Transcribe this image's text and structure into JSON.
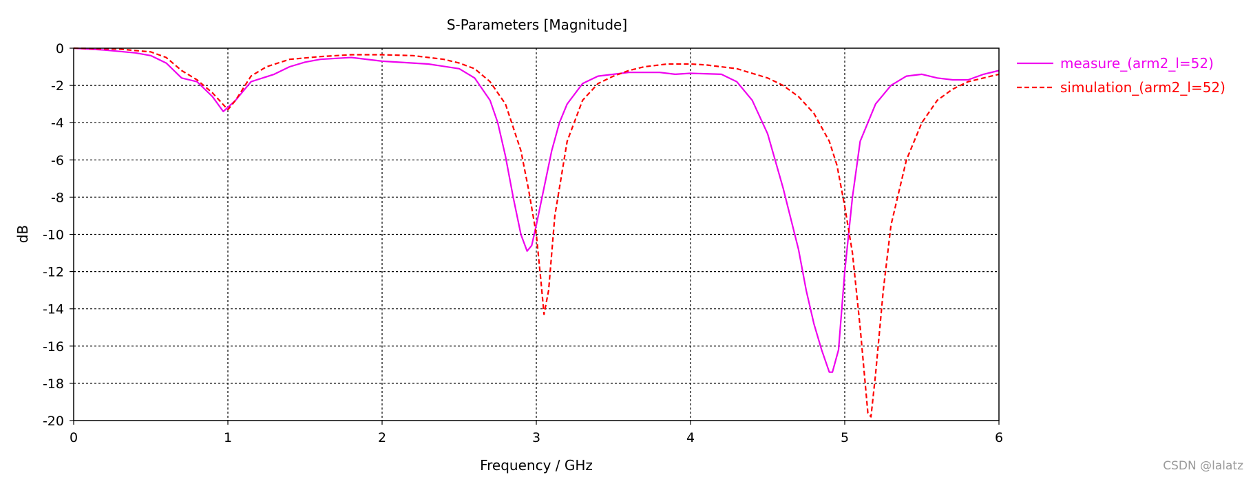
{
  "chart_data": {
    "type": "line",
    "title": "S-Parameters [Magnitude]",
    "xlabel": "Frequency / GHz",
    "ylabel": "dB",
    "xlim": [
      0,
      6
    ],
    "ylim": [
      -20,
      0
    ],
    "xticks": [
      "0",
      "1",
      "2",
      "3",
      "4",
      "5",
      "6"
    ],
    "yticks": [
      "0",
      "-2",
      "-4",
      "-6",
      "-8",
      "-10",
      "-12",
      "-14",
      "-16",
      "-18",
      "-20"
    ],
    "grid": true,
    "legend_position": "top-right, outside plot",
    "series": [
      {
        "name": "measure_(arm2_l=52)",
        "color": "#ee00ee",
        "style": "solid",
        "points": [
          [
            0,
            0
          ],
          [
            0.2,
            -0.1
          ],
          [
            0.4,
            -0.25
          ],
          [
            0.5,
            -0.4
          ],
          [
            0.6,
            -0.8
          ],
          [
            0.7,
            -1.6
          ],
          [
            0.8,
            -1.8
          ],
          [
            0.9,
            -2.6
          ],
          [
            0.97,
            -3.4
          ],
          [
            1.05,
            -2.8
          ],
          [
            1.15,
            -1.8
          ],
          [
            1.3,
            -1.4
          ],
          [
            1.4,
            -1.0
          ],
          [
            1.5,
            -0.75
          ],
          [
            1.6,
            -0.6
          ],
          [
            1.8,
            -0.5
          ],
          [
            2.0,
            -0.7
          ],
          [
            2.3,
            -0.85
          ],
          [
            2.5,
            -1.1
          ],
          [
            2.6,
            -1.6
          ],
          [
            2.7,
            -2.8
          ],
          [
            2.75,
            -4.0
          ],
          [
            2.8,
            -5.8
          ],
          [
            2.85,
            -8.0
          ],
          [
            2.9,
            -10.0
          ],
          [
            2.94,
            -10.9
          ],
          [
            2.97,
            -10.6
          ],
          [
            3.0,
            -9.5
          ],
          [
            3.05,
            -7.5
          ],
          [
            3.1,
            -5.5
          ],
          [
            3.15,
            -4.0
          ],
          [
            3.2,
            -3.0
          ],
          [
            3.3,
            -1.9
          ],
          [
            3.4,
            -1.5
          ],
          [
            3.6,
            -1.3
          ],
          [
            3.8,
            -1.3
          ],
          [
            3.9,
            -1.4
          ],
          [
            4.0,
            -1.35
          ],
          [
            4.2,
            -1.4
          ],
          [
            4.3,
            -1.8
          ],
          [
            4.4,
            -2.8
          ],
          [
            4.5,
            -4.6
          ],
          [
            4.6,
            -7.5
          ],
          [
            4.7,
            -10.8
          ],
          [
            4.75,
            -13.0
          ],
          [
            4.8,
            -14.8
          ],
          [
            4.85,
            -16.2
          ],
          [
            4.9,
            -17.4
          ],
          [
            4.92,
            -17.4
          ],
          [
            4.96,
            -16.2
          ],
          [
            5.0,
            -12.0
          ],
          [
            5.05,
            -8.0
          ],
          [
            5.1,
            -5.0
          ],
          [
            5.2,
            -3.0
          ],
          [
            5.3,
            -2.0
          ],
          [
            5.4,
            -1.5
          ],
          [
            5.5,
            -1.4
          ],
          [
            5.6,
            -1.6
          ],
          [
            5.7,
            -1.7
          ],
          [
            5.8,
            -1.7
          ],
          [
            5.9,
            -1.4
          ],
          [
            6.0,
            -1.2
          ]
        ]
      },
      {
        "name": "simulation_(arm2_l=52)",
        "color": "#ff0000",
        "style": "dashed",
        "points": [
          [
            0,
            0
          ],
          [
            0.3,
            -0.05
          ],
          [
            0.5,
            -0.2
          ],
          [
            0.6,
            -0.5
          ],
          [
            0.7,
            -1.2
          ],
          [
            0.8,
            -1.7
          ],
          [
            0.9,
            -2.4
          ],
          [
            1.0,
            -3.3
          ],
          [
            1.05,
            -2.8
          ],
          [
            1.15,
            -1.5
          ],
          [
            1.25,
            -1.0
          ],
          [
            1.4,
            -0.6
          ],
          [
            1.6,
            -0.45
          ],
          [
            1.8,
            -0.35
          ],
          [
            2.0,
            -0.35
          ],
          [
            2.2,
            -0.4
          ],
          [
            2.4,
            -0.6
          ],
          [
            2.5,
            -0.8
          ],
          [
            2.6,
            -1.1
          ],
          [
            2.7,
            -1.8
          ],
          [
            2.8,
            -3.0
          ],
          [
            2.9,
            -5.5
          ],
          [
            2.95,
            -7.6
          ],
          [
            3.0,
            -10.0
          ],
          [
            3.03,
            -12.5
          ],
          [
            3.05,
            -14.3
          ],
          [
            3.08,
            -13.0
          ],
          [
            3.12,
            -9.0
          ],
          [
            3.2,
            -5.0
          ],
          [
            3.3,
            -2.8
          ],
          [
            3.4,
            -1.9
          ],
          [
            3.5,
            -1.5
          ],
          [
            3.6,
            -1.2
          ],
          [
            3.7,
            -1.0
          ],
          [
            3.85,
            -0.85
          ],
          [
            4.0,
            -0.85
          ],
          [
            4.1,
            -0.9
          ],
          [
            4.3,
            -1.1
          ],
          [
            4.5,
            -1.6
          ],
          [
            4.6,
            -2.0
          ],
          [
            4.7,
            -2.6
          ],
          [
            4.8,
            -3.5
          ],
          [
            4.9,
            -5.0
          ],
          [
            4.95,
            -6.3
          ],
          [
            5.0,
            -8.5
          ],
          [
            5.05,
            -11.0
          ],
          [
            5.1,
            -15.0
          ],
          [
            5.15,
            -19.6
          ],
          [
            5.17,
            -19.8
          ],
          [
            5.2,
            -17.5
          ],
          [
            5.25,
            -13.0
          ],
          [
            5.3,
            -9.5
          ],
          [
            5.4,
            -6.0
          ],
          [
            5.5,
            -4.0
          ],
          [
            5.6,
            -2.8
          ],
          [
            5.7,
            -2.2
          ],
          [
            5.8,
            -1.8
          ],
          [
            5.9,
            -1.6
          ],
          [
            6.0,
            -1.4
          ]
        ]
      }
    ]
  },
  "watermark": "CSDN @lalatz"
}
